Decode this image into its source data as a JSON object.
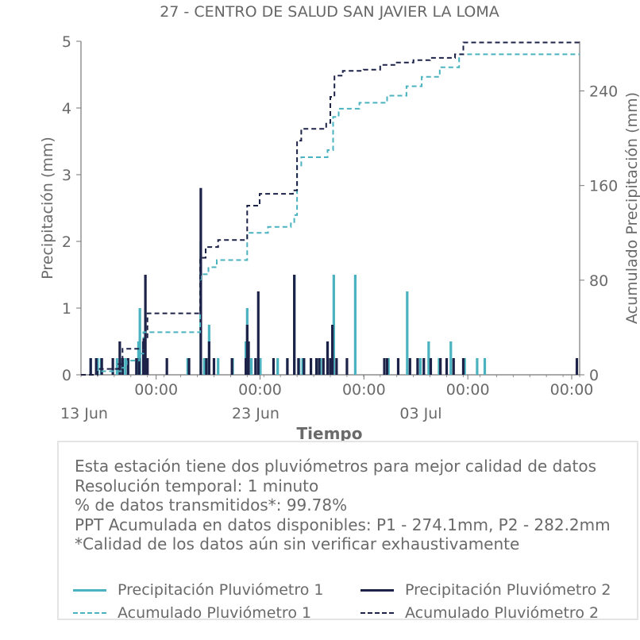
{
  "chart_data": {
    "type": "line",
    "title": "27 - CENTRO DE SALUD SAN JAVIER LA LOMA",
    "xlabel": "Tiempo",
    "ylabel_left": "Precipitación (mm)",
    "ylabel_right": "Acumulado Precipitación (mm)",
    "ylim_left": [
      0,
      5
    ],
    "ylim_right": [
      0,
      282
    ],
    "yticks_left": [
      "0",
      "1",
      "2",
      "3",
      "4",
      "5"
    ],
    "yticks_right": [
      "0",
      "80",
      "160",
      "240"
    ],
    "xlim": [
      "2023-06-13 00:00",
      "2023-07-13 00:00"
    ],
    "x_tick_labels": [
      "00:00",
      "00:00",
      "00:00",
      "00:00",
      "00:00"
    ],
    "x_date_labels": [
      "13 Jun",
      "23 Jun",
      "03 Jul"
    ],
    "grid": false,
    "colors": {
      "p1": "#4ab3bf",
      "p2": "#1d2248"
    },
    "series": [
      {
        "name": "Precipitación Pluviómetro 1",
        "axis": "left",
        "style": "solid",
        "points": [
          [
            "2023-06-13 14:00",
            0.25
          ],
          [
            "2023-06-14 00:00",
            0.25
          ],
          [
            "2023-06-14 05:00",
            0.25
          ],
          [
            "2023-06-15 04:00",
            0.25
          ],
          [
            "2023-06-15 12:00",
            0.25
          ],
          [
            "2023-06-15 16:00",
            0.25
          ],
          [
            "2023-06-16 11:00",
            0.5
          ],
          [
            "2023-06-16 13:00",
            1.0
          ],
          [
            "2023-06-16 18:00",
            0.25
          ],
          [
            "2023-06-19 10:00",
            0.25
          ],
          [
            "2023-06-20 05:00",
            2.0
          ],
          [
            "2023-06-20 10:00",
            0.25
          ],
          [
            "2023-06-20 17:00",
            0.75
          ],
          [
            "2023-06-21 06:00",
            0.25
          ],
          [
            "2023-06-22 03:00",
            0.25
          ],
          [
            "2023-06-22 22:00",
            0.5
          ],
          [
            "2023-06-23 00:00",
            1.0
          ],
          [
            "2023-06-23 02:00",
            0.25
          ],
          [
            "2023-06-23 06:00",
            0.25
          ],
          [
            "2023-06-23 19:00",
            0.25
          ],
          [
            "2023-06-24 20:00",
            0.25
          ],
          [
            "2023-06-25 10:00",
            0.25
          ],
          [
            "2023-06-25 20:00",
            1.5
          ],
          [
            "2023-06-26 03:00",
            0.25
          ],
          [
            "2023-06-26 08:00",
            0.25
          ],
          [
            "2023-06-27 04:00",
            0.25
          ],
          [
            "2023-06-27 10:00",
            0.25
          ],
          [
            "2023-06-27 20:00",
            0.5
          ],
          [
            "2023-06-28 05:00",
            1.5
          ],
          [
            "2023-06-29 12:00",
            1.5
          ],
          [
            "2023-07-01 12:00",
            0.25
          ],
          [
            "2023-07-02 15:00",
            1.25
          ],
          [
            "2023-07-03 10:00",
            0.25
          ],
          [
            "2023-07-03 22:00",
            0.5
          ],
          [
            "2023-07-04 13:00",
            0.25
          ],
          [
            "2023-07-05 06:00",
            0.5
          ],
          [
            "2023-07-06 02:00",
            0.25
          ],
          [
            "2023-07-06 20:00",
            0.25
          ],
          [
            "2023-07-07 07:00",
            0.25
          ]
        ]
      },
      {
        "name": "Precipitación Pluviómetro 2",
        "axis": "left",
        "style": "solid",
        "points": [
          [
            "2023-06-13 14:00",
            0.25
          ],
          [
            "2023-06-13 22:00",
            0.25
          ],
          [
            "2023-06-14 06:00",
            0.25
          ],
          [
            "2023-06-14 22:00",
            0.25
          ],
          [
            "2023-06-15 08:00",
            0.5
          ],
          [
            "2023-06-15 12:00",
            0.25
          ],
          [
            "2023-06-15 20:00",
            0.25
          ],
          [
            "2023-06-16 08:00",
            0.25
          ],
          [
            "2023-06-16 12:00",
            0.25
          ],
          [
            "2023-06-16 18:00",
            0.5
          ],
          [
            "2023-06-16 21:00",
            1.5
          ],
          [
            "2023-06-17 00:00",
            0.25
          ],
          [
            "2023-06-18 04:00",
            0.25
          ],
          [
            "2023-06-19 12:00",
            0.25
          ],
          [
            "2023-06-20 05:00",
            2.8
          ],
          [
            "2023-06-20 13:00",
            0.25
          ],
          [
            "2023-06-20 17:00",
            0.5
          ],
          [
            "2023-06-21 00:00",
            0.25
          ],
          [
            "2023-06-22 02:00",
            0.25
          ],
          [
            "2023-06-22 22:00",
            0.25
          ],
          [
            "2023-06-23 00:00",
            0.75
          ],
          [
            "2023-06-23 02:00",
            0.5
          ],
          [
            "2023-06-23 12:00",
            0.25
          ],
          [
            "2023-06-23 16:00",
            1.25
          ],
          [
            "2023-06-24 14:00",
            0.25
          ],
          [
            "2023-06-25 10:00",
            0.25
          ],
          [
            "2023-06-25 20:00",
            1.5
          ],
          [
            "2023-06-26 02:00",
            0.25
          ],
          [
            "2023-06-26 10:00",
            0.25
          ],
          [
            "2023-06-26 20:00",
            0.25
          ],
          [
            "2023-06-27 04:00",
            0.25
          ],
          [
            "2023-06-27 08:00",
            0.25
          ],
          [
            "2023-06-27 14:00",
            0.25
          ],
          [
            "2023-06-27 20:00",
            0.5
          ],
          [
            "2023-06-28 00:00",
            0.25
          ],
          [
            "2023-06-28 03:00",
            0.75
          ],
          [
            "2023-06-28 09:00",
            0.25
          ],
          [
            "2023-06-29 00:00",
            0.25
          ],
          [
            "2023-07-01 06:00",
            0.25
          ],
          [
            "2023-07-01 10:00",
            0.25
          ],
          [
            "2023-07-02 02:00",
            0.25
          ],
          [
            "2023-07-02 19:00",
            0.25
          ],
          [
            "2023-07-03 06:00",
            0.25
          ],
          [
            "2023-07-03 15:00",
            0.25
          ],
          [
            "2023-07-04 01:00",
            0.25
          ],
          [
            "2023-07-04 15:00",
            0.25
          ],
          [
            "2023-07-05 00:00",
            0.25
          ],
          [
            "2023-07-05 10:00",
            0.25
          ],
          [
            "2023-07-06 00:00",
            0.25
          ],
          [
            "2023-07-12 20:00",
            0.25
          ]
        ]
      },
      {
        "name": "Acumulado Pluviómetro 1",
        "axis": "right",
        "style": "dashed",
        "points": [
          [
            "2023-06-13 00:00",
            0
          ],
          [
            "2023-06-13 12:00",
            0
          ],
          [
            "2023-06-14 00:00",
            3
          ],
          [
            "2023-06-15 12:00",
            6
          ],
          [
            "2023-06-15 18:00",
            12
          ],
          [
            "2023-06-16 12:00",
            18
          ],
          [
            "2023-06-16 18:00",
            36
          ],
          [
            "2023-06-20 03:00",
            36
          ],
          [
            "2023-06-20 04:00",
            80
          ],
          [
            "2023-06-20 05:00",
            85
          ],
          [
            "2023-06-20 16:00",
            91
          ],
          [
            "2023-06-21 04:00",
            97
          ],
          [
            "2023-06-22 22:00",
            97
          ],
          [
            "2023-06-23 00:00",
            120
          ],
          [
            "2023-06-24 06:00",
            125
          ],
          [
            "2023-06-25 15:00",
            128
          ],
          [
            "2023-06-25 20:00",
            135
          ],
          [
            "2023-06-26 00:00",
            177
          ],
          [
            "2023-06-26 06:00",
            184
          ],
          [
            "2023-06-27 20:00",
            190
          ],
          [
            "2023-06-28 04:00",
            218
          ],
          [
            "2023-06-28 12:00",
            225
          ],
          [
            "2023-06-29 18:00",
            230
          ],
          [
            "2023-07-01 10:00",
            236
          ],
          [
            "2023-07-02 14:00",
            244
          ],
          [
            "2023-07-03 12:00",
            252
          ],
          [
            "2023-07-04 14:00",
            260
          ],
          [
            "2023-07-05 18:00",
            271
          ],
          [
            "2023-07-13 00:00",
            271
          ]
        ]
      },
      {
        "name": "Acumulado Pluviómetro 2",
        "axis": "right",
        "style": "dashed",
        "points": [
          [
            "2023-06-13 00:00",
            0
          ],
          [
            "2023-06-13 12:00",
            0
          ],
          [
            "2023-06-14 00:00",
            5
          ],
          [
            "2023-06-15 06:00",
            9
          ],
          [
            "2023-06-15 12:00",
            22
          ],
          [
            "2023-06-16 18:00",
            30
          ],
          [
            "2023-06-17 00:00",
            52
          ],
          [
            "2023-06-20 03:00",
            52
          ],
          [
            "2023-06-20 04:00",
            99
          ],
          [
            "2023-06-20 12:00",
            108
          ],
          [
            "2023-06-21 06:00",
            114
          ],
          [
            "2023-06-22 22:00",
            114
          ],
          [
            "2023-06-23 00:00",
            143
          ],
          [
            "2023-06-23 18:00",
            153
          ],
          [
            "2023-06-25 18:00",
            156
          ],
          [
            "2023-06-26 00:00",
            198
          ],
          [
            "2023-06-26 06:00",
            208
          ],
          [
            "2023-06-27 18:00",
            213
          ],
          [
            "2023-06-28 00:00",
            235
          ],
          [
            "2023-06-28 06:00",
            253
          ],
          [
            "2023-06-28 18:00",
            257
          ],
          [
            "2023-06-30 00:00",
            258
          ],
          [
            "2023-07-01 00:00",
            262
          ],
          [
            "2023-07-02 00:00",
            264
          ],
          [
            "2023-07-03 00:00",
            266
          ],
          [
            "2023-07-04 00:00",
            268
          ],
          [
            "2023-07-05 12:00",
            271
          ],
          [
            "2023-07-06 00:00",
            281
          ],
          [
            "2023-07-13 00:00",
            281
          ]
        ]
      }
    ]
  },
  "info": {
    "line1": "Esta estación tiene dos pluviómetros para mejor calidad de datos",
    "line2": "Resolución temporal: 1 minuto",
    "line3": "% de datos transmitidos*: 99.78%",
    "line4": "PPT Acumulada en datos disponibles: P1 - 274.1mm, P2 - 282.2mm",
    "line5": "*Calidad de los datos aún sin verificar exhaustivamente"
  },
  "legend": {
    "item1": "Precipitación Pluviómetro 1",
    "item2": "Precipitación Pluviómetro 2",
    "item3": "Acumulado Pluviómetro 1",
    "item4": "Acumulado Pluviómetro 2"
  }
}
